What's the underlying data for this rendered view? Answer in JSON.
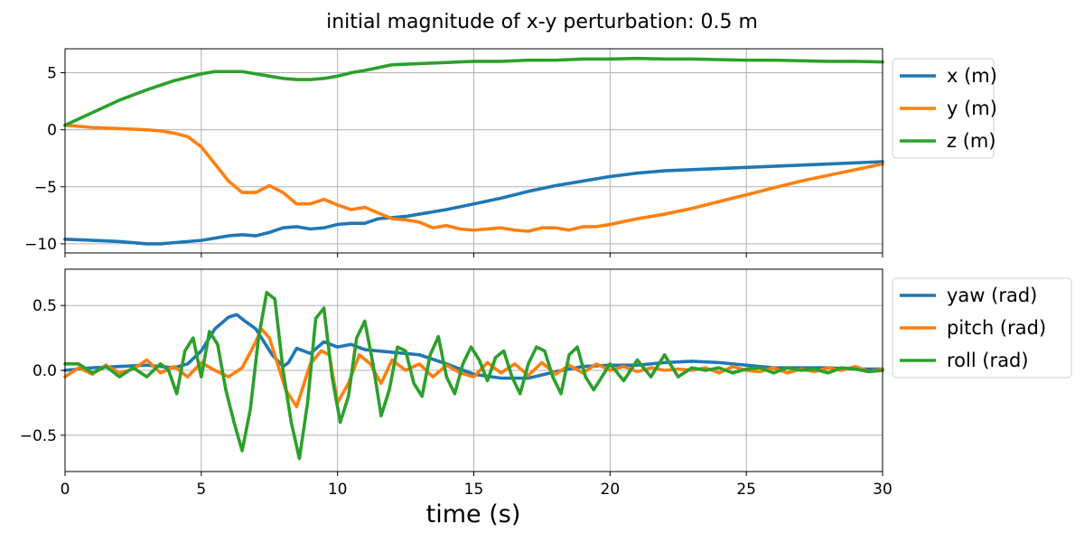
{
  "chart_data": {
    "title": "initial magnitude of x-y perturbation: 0.5 m",
    "xlabel": "time (s)",
    "xlim": [
      0,
      30
    ],
    "x_ticks": [
      0,
      5,
      10,
      15,
      20,
      25,
      30
    ],
    "grid": true,
    "legend_placement": "outside-right",
    "panels": [
      {
        "type": "line",
        "ylim": [
          -10.8,
          7.1
        ],
        "y_ticks": [
          -10,
          -5,
          0,
          5
        ],
        "series": [
          {
            "name": "x (m)",
            "color": "#1f77b4",
            "x": [
              0,
              1,
              2,
              3,
              3.5,
              4,
              5,
              5.5,
              6,
              6.5,
              7,
              7.5,
              8,
              8.5,
              9,
              9.5,
              10,
              10.5,
              11,
              11.5,
              12,
              12.5,
              13,
              14,
              15,
              16,
              17,
              18,
              19,
              20,
              21,
              22,
              23,
              24,
              25,
              26,
              27,
              28,
              29,
              30
            ],
            "y": [
              -9.6,
              -9.7,
              -9.8,
              -10,
              -10,
              -9.9,
              -9.7,
              -9.5,
              -9.3,
              -9.2,
              -9.3,
              -9.0,
              -8.6,
              -8.5,
              -8.7,
              -8.6,
              -8.3,
              -8.2,
              -8.2,
              -7.8,
              -7.7,
              -7.6,
              -7.4,
              -7.0,
              -6.5,
              -6.0,
              -5.4,
              -4.9,
              -4.5,
              -4.1,
              -3.8,
              -3.6,
              -3.5,
              -3.4,
              -3.3,
              -3.2,
              -3.1,
              -3.0,
              -2.9,
              -2.8
            ]
          },
          {
            "name": "y (m)",
            "color": "#ff7f0e",
            "x": [
              0,
              1,
              2,
              3,
              3.5,
              4,
              4.5,
              5,
              5.5,
              6,
              6.5,
              7,
              7.5,
              8,
              8.5,
              9,
              9.5,
              10,
              10.5,
              11,
              11.5,
              12,
              12.5,
              13,
              13.5,
              14,
              14.5,
              15,
              15.5,
              16,
              16.5,
              17,
              17.5,
              18,
              18.5,
              19,
              19.5,
              20,
              21,
              22,
              23,
              24,
              25,
              26,
              27,
              28,
              29,
              30
            ],
            "y": [
              0.4,
              0.2,
              0.1,
              0,
              -0.1,
              -0.3,
              -0.6,
              -1.5,
              -3.0,
              -4.5,
              -5.5,
              -5.5,
              -4.9,
              -5.5,
              -6.5,
              -6.5,
              -6.1,
              -6.6,
              -7.0,
              -6.8,
              -7.3,
              -7.8,
              -7.9,
              -8.1,
              -8.6,
              -8.4,
              -8.7,
              -8.8,
              -8.7,
              -8.6,
              -8.8,
              -8.9,
              -8.6,
              -8.6,
              -8.8,
              -8.5,
              -8.5,
              -8.3,
              -7.8,
              -7.4,
              -6.9,
              -6.3,
              -5.7,
              -5.1,
              -4.5,
              -4.0,
              -3.5,
              -3.0
            ]
          },
          {
            "name": "z (m)",
            "color": "#2ca02c",
            "x": [
              0,
              1,
              2,
              3,
              4,
              5,
              5.5,
              6,
              6.5,
              7,
              7.5,
              8,
              8.5,
              9,
              9.5,
              10,
              10.5,
              11,
              12,
              13,
              14,
              15,
              16,
              17,
              18,
              19,
              20,
              21,
              22,
              23,
              24,
              25,
              26,
              27,
              28,
              29,
              30
            ],
            "y": [
              0.4,
              1.5,
              2.6,
              3.5,
              4.3,
              4.9,
              5.1,
              5.1,
              5.1,
              4.9,
              4.7,
              4.5,
              4.4,
              4.4,
              4.5,
              4.7,
              5.0,
              5.2,
              5.7,
              5.8,
              5.9,
              6.0,
              6.0,
              6.1,
              6.1,
              6.2,
              6.2,
              6.25,
              6.2,
              6.2,
              6.15,
              6.1,
              6.1,
              6.05,
              6.0,
              6.0,
              5.95
            ]
          }
        ]
      },
      {
        "type": "line",
        "ylim": [
          -0.78,
          0.78
        ],
        "y_ticks": [
          -0.5,
          0.0,
          0.5
        ],
        "series": [
          {
            "name": "yaw (rad)",
            "color": "#1f77b4",
            "x": [
              0,
              1,
              2,
              3,
              4,
              4.5,
              5,
              5.5,
              6,
              6.3,
              6.6,
              7,
              7.3,
              7.6,
              8,
              8.2,
              8.5,
              9,
              9.5,
              10,
              10.5,
              11,
              12,
              13,
              14,
              15,
              16,
              17,
              18,
              19,
              20,
              21,
              22,
              23,
              24,
              25,
              26,
              27,
              28,
              29,
              30
            ],
            "y": [
              0.0,
              0.02,
              0.03,
              0.04,
              0.02,
              0.05,
              0.15,
              0.32,
              0.41,
              0.43,
              0.38,
              0.32,
              0.22,
              0.12,
              0.03,
              0.06,
              0.17,
              0.13,
              0.22,
              0.18,
              0.2,
              0.16,
              0.14,
              0.12,
              0.05,
              -0.03,
              -0.06,
              -0.06,
              -0.01,
              0.03,
              0.04,
              0.04,
              0.06,
              0.07,
              0.06,
              0.04,
              0.02,
              0.02,
              0.02,
              0.01,
              0.01
            ]
          },
          {
            "name": "pitch (rad)",
            "color": "#ff7f0e",
            "x": [
              0,
              0.5,
              1,
              1.5,
              2,
              2.5,
              3,
              3.5,
              4,
              4.5,
              5,
              5.5,
              6,
              6.5,
              7,
              7.2,
              7.5,
              7.8,
              8.1,
              8.5,
              9,
              9.4,
              9.7,
              10,
              10.4,
              10.8,
              11.2,
              11.6,
              12,
              12.5,
              13,
              13.5,
              14,
              14.5,
              15,
              15.5,
              16,
              16.5,
              17,
              17.5,
              18,
              18.5,
              19,
              19.5,
              20,
              20.5,
              21,
              21.5,
              22,
              22.5,
              23,
              23.5,
              24,
              24.5,
              25,
              25.5,
              26,
              26.5,
              27,
              27.5,
              28,
              28.5,
              29,
              29.5,
              30
            ],
            "y": [
              -0.05,
              0.02,
              -0.03,
              0.04,
              -0.02,
              0.01,
              0.08,
              -0.02,
              0.03,
              -0.05,
              0.06,
              0.0,
              -0.05,
              0.02,
              0.22,
              0.32,
              0.25,
              0.05,
              -0.15,
              -0.28,
              0.05,
              0.15,
              0.12,
              -0.25,
              -0.1,
              0.12,
              0.05,
              -0.1,
              0.08,
              0.0,
              0.05,
              -0.05,
              0.04,
              -0.02,
              -0.05,
              0.06,
              -0.02,
              0.05,
              -0.04,
              0.06,
              -0.03,
              0.04,
              -0.02,
              0.05,
              0.0,
              0.03,
              -0.01,
              0.02,
              0.0,
              0.01,
              0.0,
              0.02,
              -0.02,
              0.03,
              0.0,
              -0.01,
              0.02,
              -0.02,
              0.01,
              -0.01,
              0.02,
              0.0,
              0.03,
              -0.01,
              0.01
            ]
          },
          {
            "name": "roll (rad)",
            "color": "#2ca02c",
            "x": [
              0,
              0.5,
              1,
              1.5,
              2,
              2.5,
              3,
              3.5,
              3.8,
              4.1,
              4.4,
              4.7,
              5.0,
              5.3,
              5.6,
              5.9,
              6.2,
              6.5,
              6.8,
              7.1,
              7.4,
              7.7,
              8.0,
              8.3,
              8.6,
              8.9,
              9.2,
              9.5,
              9.8,
              10.1,
              10.4,
              10.7,
              11.0,
              11.3,
              11.6,
              11.9,
              12.2,
              12.5,
              12.8,
              13.1,
              13.4,
              13.7,
              14.0,
              14.3,
              14.6,
              14.9,
              15.2,
              15.5,
              15.8,
              16.1,
              16.4,
              16.7,
              17.0,
              17.3,
              17.6,
              17.9,
              18.2,
              18.5,
              18.8,
              19.1,
              19.4,
              19.7,
              20.0,
              20.5,
              21.0,
              21.5,
              22.0,
              22.5,
              23.0,
              23.5,
              24.0,
              24.5,
              25.0,
              25.5,
              26.0,
              26.5,
              27.0,
              27.5,
              28.0,
              28.5,
              29.0,
              29.5,
              30.0
            ],
            "y": [
              0.05,
              0.05,
              -0.02,
              0.03,
              -0.05,
              0.02,
              -0.05,
              0.05,
              0.0,
              -0.18,
              0.15,
              0.25,
              -0.05,
              0.3,
              0.2,
              -0.15,
              -0.4,
              -0.62,
              -0.3,
              0.25,
              0.6,
              0.55,
              0.0,
              -0.4,
              -0.68,
              -0.25,
              0.4,
              0.48,
              -0.05,
              -0.4,
              -0.2,
              0.25,
              0.38,
              0.05,
              -0.35,
              -0.15,
              0.18,
              0.15,
              -0.1,
              -0.2,
              0.12,
              0.26,
              -0.05,
              -0.18,
              0.05,
              0.18,
              0.08,
              -0.08,
              0.1,
              0.15,
              -0.05,
              -0.18,
              0.05,
              0.18,
              0.15,
              -0.05,
              -0.18,
              0.12,
              0.18,
              -0.05,
              -0.15,
              -0.05,
              0.05,
              -0.08,
              0.08,
              -0.05,
              0.12,
              -0.05,
              0.02,
              0.0,
              0.02,
              -0.02,
              0.01,
              0.02,
              -0.02,
              0.02,
              0.0,
              0.01,
              -0.02,
              0.02,
              0.01,
              -0.01,
              0.0
            ]
          }
        ]
      }
    ]
  }
}
